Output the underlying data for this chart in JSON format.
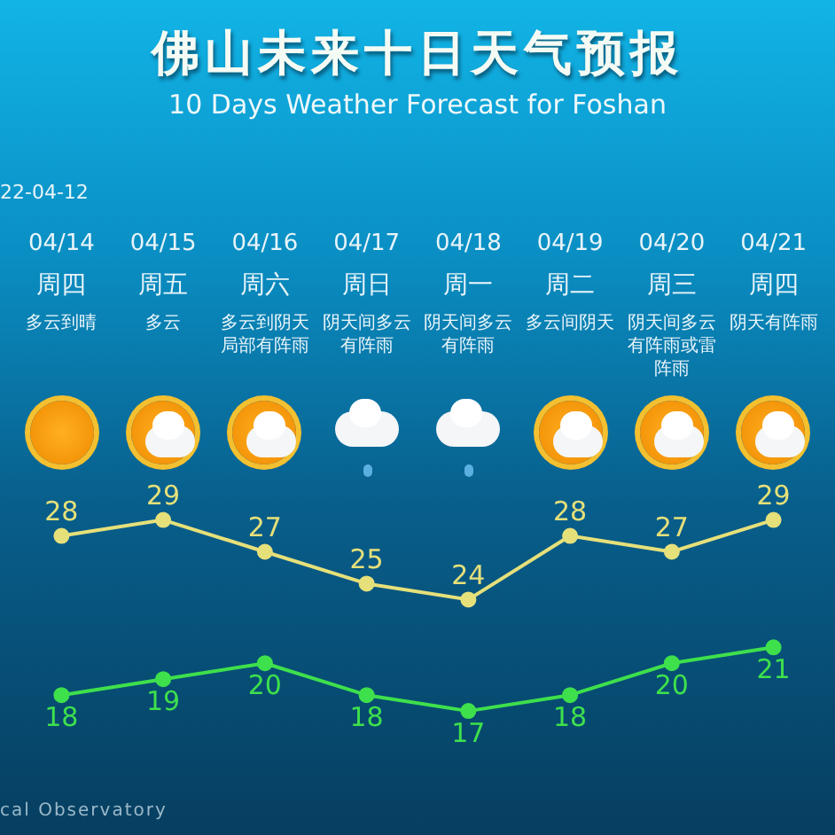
{
  "chart_data": {
    "type": "line",
    "title": "佛山未来十日天气预报",
    "subtitle": "10 Days Weather Forecast for Foshan",
    "categories": [
      "04/14",
      "04/15",
      "04/16",
      "04/17",
      "04/18",
      "04/19",
      "04/20",
      "04/21"
    ],
    "series": [
      {
        "color": "#e6e07a",
        "values": [
          28,
          29,
          27,
          25,
          24,
          28,
          27,
          29
        ]
      },
      {
        "color": "#3ee04c",
        "values": [
          18,
          19,
          20,
          18,
          17,
          18,
          20,
          21
        ]
      }
    ],
    "data_labels": true,
    "legend": false,
    "grid": false,
    "marker": "circle",
    "line_style": "solid",
    "tick_labels": "x",
    "annotations": [
      "22-04-12",
      "cal Observatory",
      "周四",
      "多云到晴",
      "周五",
      "多云",
      "周六",
      "多云到阴天局部有阵雨",
      "周日",
      "阴天间多云有阵雨",
      "周一",
      "阴天间多云有阵雨",
      "周二",
      "多云间阴天",
      "周三",
      "阴天间多云有阵雨或雷阵雨",
      "周四",
      "阴天有阵雨"
    ]
  }
}
